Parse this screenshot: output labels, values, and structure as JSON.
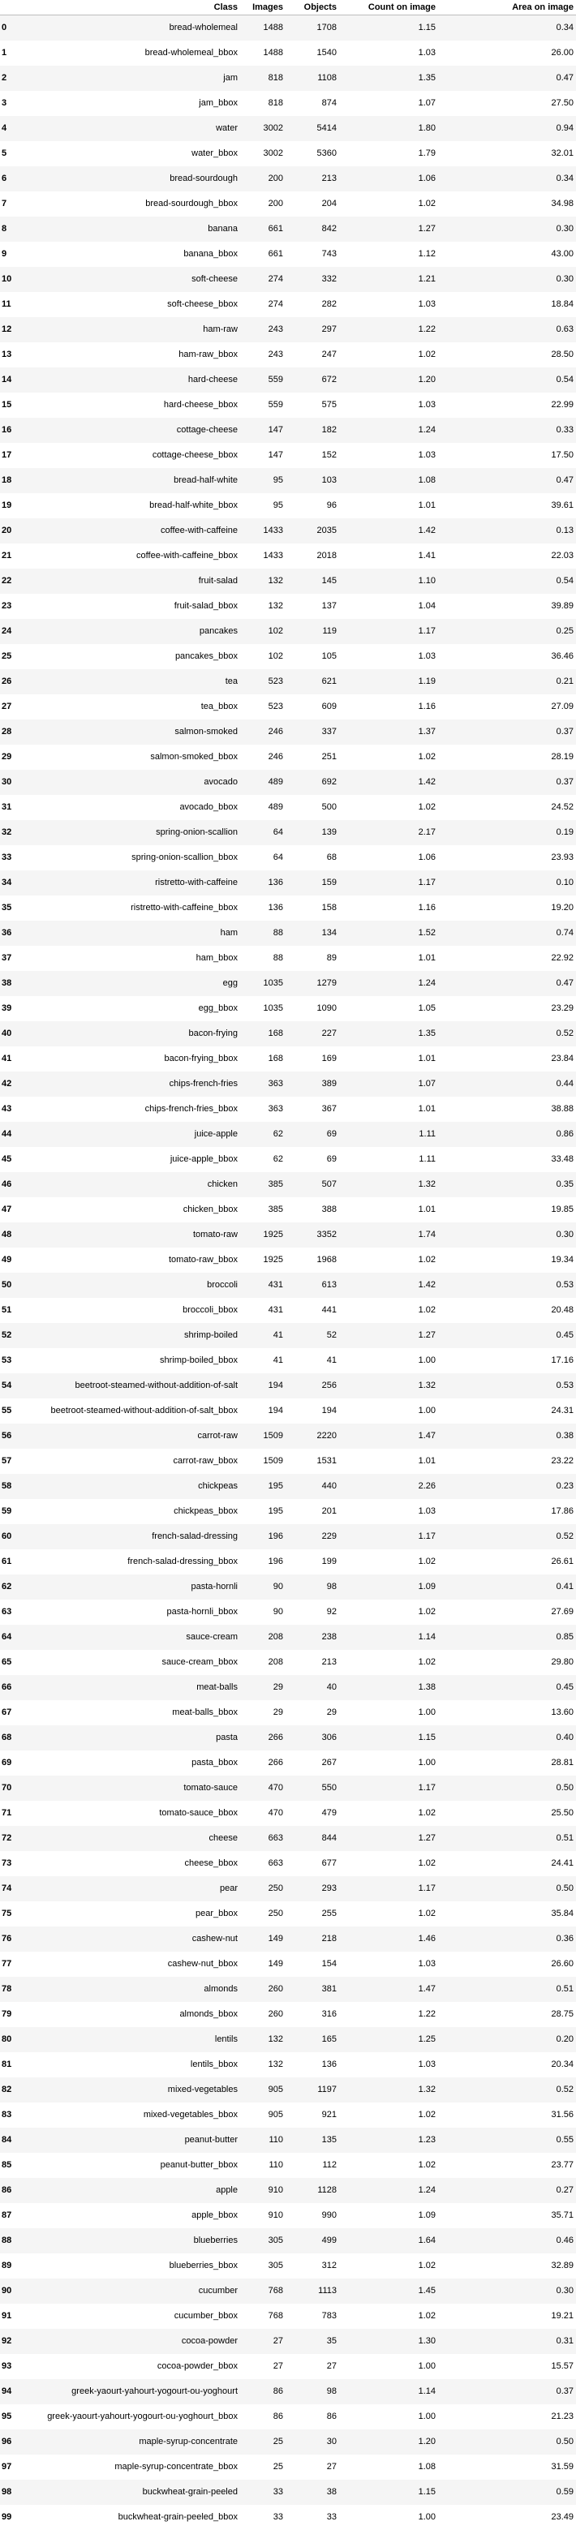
{
  "columns": [
    "",
    "Class",
    "Images",
    "Objects",
    "Count on image",
    "Area on image"
  ],
  "rows": [
    [
      "0",
      "bread-wholemeal",
      "1488",
      "1708",
      "1.15",
      "0.34"
    ],
    [
      "1",
      "bread-wholemeal_bbox",
      "1488",
      "1540",
      "1.03",
      "26.00"
    ],
    [
      "2",
      "jam",
      "818",
      "1108",
      "1.35",
      "0.47"
    ],
    [
      "3",
      "jam_bbox",
      "818",
      "874",
      "1.07",
      "27.50"
    ],
    [
      "4",
      "water",
      "3002",
      "5414",
      "1.80",
      "0.94"
    ],
    [
      "5",
      "water_bbox",
      "3002",
      "5360",
      "1.79",
      "32.01"
    ],
    [
      "6",
      "bread-sourdough",
      "200",
      "213",
      "1.06",
      "0.34"
    ],
    [
      "7",
      "bread-sourdough_bbox",
      "200",
      "204",
      "1.02",
      "34.98"
    ],
    [
      "8",
      "banana",
      "661",
      "842",
      "1.27",
      "0.30"
    ],
    [
      "9",
      "banana_bbox",
      "661",
      "743",
      "1.12",
      "43.00"
    ],
    [
      "10",
      "soft-cheese",
      "274",
      "332",
      "1.21",
      "0.30"
    ],
    [
      "11",
      "soft-cheese_bbox",
      "274",
      "282",
      "1.03",
      "18.84"
    ],
    [
      "12",
      "ham-raw",
      "243",
      "297",
      "1.22",
      "0.63"
    ],
    [
      "13",
      "ham-raw_bbox",
      "243",
      "247",
      "1.02",
      "28.50"
    ],
    [
      "14",
      "hard-cheese",
      "559",
      "672",
      "1.20",
      "0.54"
    ],
    [
      "15",
      "hard-cheese_bbox",
      "559",
      "575",
      "1.03",
      "22.99"
    ],
    [
      "16",
      "cottage-cheese",
      "147",
      "182",
      "1.24",
      "0.33"
    ],
    [
      "17",
      "cottage-cheese_bbox",
      "147",
      "152",
      "1.03",
      "17.50"
    ],
    [
      "18",
      "bread-half-white",
      "95",
      "103",
      "1.08",
      "0.47"
    ],
    [
      "19",
      "bread-half-white_bbox",
      "95",
      "96",
      "1.01",
      "39.61"
    ],
    [
      "20",
      "coffee-with-caffeine",
      "1433",
      "2035",
      "1.42",
      "0.13"
    ],
    [
      "21",
      "coffee-with-caffeine_bbox",
      "1433",
      "2018",
      "1.41",
      "22.03"
    ],
    [
      "22",
      "fruit-salad",
      "132",
      "145",
      "1.10",
      "0.54"
    ],
    [
      "23",
      "fruit-salad_bbox",
      "132",
      "137",
      "1.04",
      "39.89"
    ],
    [
      "24",
      "pancakes",
      "102",
      "119",
      "1.17",
      "0.25"
    ],
    [
      "25",
      "pancakes_bbox",
      "102",
      "105",
      "1.03",
      "36.46"
    ],
    [
      "26",
      "tea",
      "523",
      "621",
      "1.19",
      "0.21"
    ],
    [
      "27",
      "tea_bbox",
      "523",
      "609",
      "1.16",
      "27.09"
    ],
    [
      "28",
      "salmon-smoked",
      "246",
      "337",
      "1.37",
      "0.37"
    ],
    [
      "29",
      "salmon-smoked_bbox",
      "246",
      "251",
      "1.02",
      "28.19"
    ],
    [
      "30",
      "avocado",
      "489",
      "692",
      "1.42",
      "0.37"
    ],
    [
      "31",
      "avocado_bbox",
      "489",
      "500",
      "1.02",
      "24.52"
    ],
    [
      "32",
      "spring-onion-scallion",
      "64",
      "139",
      "2.17",
      "0.19"
    ],
    [
      "33",
      "spring-onion-scallion_bbox",
      "64",
      "68",
      "1.06",
      "23.93"
    ],
    [
      "34",
      "ristretto-with-caffeine",
      "136",
      "159",
      "1.17",
      "0.10"
    ],
    [
      "35",
      "ristretto-with-caffeine_bbox",
      "136",
      "158",
      "1.16",
      "19.20"
    ],
    [
      "36",
      "ham",
      "88",
      "134",
      "1.52",
      "0.74"
    ],
    [
      "37",
      "ham_bbox",
      "88",
      "89",
      "1.01",
      "22.92"
    ],
    [
      "38",
      "egg",
      "1035",
      "1279",
      "1.24",
      "0.47"
    ],
    [
      "39",
      "egg_bbox",
      "1035",
      "1090",
      "1.05",
      "23.29"
    ],
    [
      "40",
      "bacon-frying",
      "168",
      "227",
      "1.35",
      "0.52"
    ],
    [
      "41",
      "bacon-frying_bbox",
      "168",
      "169",
      "1.01",
      "23.84"
    ],
    [
      "42",
      "chips-french-fries",
      "363",
      "389",
      "1.07",
      "0.44"
    ],
    [
      "43",
      "chips-french-fries_bbox",
      "363",
      "367",
      "1.01",
      "38.88"
    ],
    [
      "44",
      "juice-apple",
      "62",
      "69",
      "1.11",
      "0.86"
    ],
    [
      "45",
      "juice-apple_bbox",
      "62",
      "69",
      "1.11",
      "33.48"
    ],
    [
      "46",
      "chicken",
      "385",
      "507",
      "1.32",
      "0.35"
    ],
    [
      "47",
      "chicken_bbox",
      "385",
      "388",
      "1.01",
      "19.85"
    ],
    [
      "48",
      "tomato-raw",
      "1925",
      "3352",
      "1.74",
      "0.30"
    ],
    [
      "49",
      "tomato-raw_bbox",
      "1925",
      "1968",
      "1.02",
      "19.34"
    ],
    [
      "50",
      "broccoli",
      "431",
      "613",
      "1.42",
      "0.53"
    ],
    [
      "51",
      "broccoli_bbox",
      "431",
      "441",
      "1.02",
      "20.48"
    ],
    [
      "52",
      "shrimp-boiled",
      "41",
      "52",
      "1.27",
      "0.45"
    ],
    [
      "53",
      "shrimp-boiled_bbox",
      "41",
      "41",
      "1.00",
      "17.16"
    ],
    [
      "54",
      "beetroot-steamed-without-addition-of-salt",
      "194",
      "256",
      "1.32",
      "0.53"
    ],
    [
      "55",
      "beetroot-steamed-without-addition-of-salt_bbox",
      "194",
      "194",
      "1.00",
      "24.31"
    ],
    [
      "56",
      "carrot-raw",
      "1509",
      "2220",
      "1.47",
      "0.38"
    ],
    [
      "57",
      "carrot-raw_bbox",
      "1509",
      "1531",
      "1.01",
      "23.22"
    ],
    [
      "58",
      "chickpeas",
      "195",
      "440",
      "2.26",
      "0.23"
    ],
    [
      "59",
      "chickpeas_bbox",
      "195",
      "201",
      "1.03",
      "17.86"
    ],
    [
      "60",
      "french-salad-dressing",
      "196",
      "229",
      "1.17",
      "0.52"
    ],
    [
      "61",
      "french-salad-dressing_bbox",
      "196",
      "199",
      "1.02",
      "26.61"
    ],
    [
      "62",
      "pasta-hornli",
      "90",
      "98",
      "1.09",
      "0.41"
    ],
    [
      "63",
      "pasta-hornli_bbox",
      "90",
      "92",
      "1.02",
      "27.69"
    ],
    [
      "64",
      "sauce-cream",
      "208",
      "238",
      "1.14",
      "0.85"
    ],
    [
      "65",
      "sauce-cream_bbox",
      "208",
      "213",
      "1.02",
      "29.80"
    ],
    [
      "66",
      "meat-balls",
      "29",
      "40",
      "1.38",
      "0.45"
    ],
    [
      "67",
      "meat-balls_bbox",
      "29",
      "29",
      "1.00",
      "13.60"
    ],
    [
      "68",
      "pasta",
      "266",
      "306",
      "1.15",
      "0.40"
    ],
    [
      "69",
      "pasta_bbox",
      "266",
      "267",
      "1.00",
      "28.81"
    ],
    [
      "70",
      "tomato-sauce",
      "470",
      "550",
      "1.17",
      "0.50"
    ],
    [
      "71",
      "tomato-sauce_bbox",
      "470",
      "479",
      "1.02",
      "25.50"
    ],
    [
      "72",
      "cheese",
      "663",
      "844",
      "1.27",
      "0.51"
    ],
    [
      "73",
      "cheese_bbox",
      "663",
      "677",
      "1.02",
      "24.41"
    ],
    [
      "74",
      "pear",
      "250",
      "293",
      "1.17",
      "0.50"
    ],
    [
      "75",
      "pear_bbox",
      "250",
      "255",
      "1.02",
      "35.84"
    ],
    [
      "76",
      "cashew-nut",
      "149",
      "218",
      "1.46",
      "0.36"
    ],
    [
      "77",
      "cashew-nut_bbox",
      "149",
      "154",
      "1.03",
      "26.60"
    ],
    [
      "78",
      "almonds",
      "260",
      "381",
      "1.47",
      "0.51"
    ],
    [
      "79",
      "almonds_bbox",
      "260",
      "316",
      "1.22",
      "28.75"
    ],
    [
      "80",
      "lentils",
      "132",
      "165",
      "1.25",
      "0.20"
    ],
    [
      "81",
      "lentils_bbox",
      "132",
      "136",
      "1.03",
      "20.34"
    ],
    [
      "82",
      "mixed-vegetables",
      "905",
      "1197",
      "1.32",
      "0.52"
    ],
    [
      "83",
      "mixed-vegetables_bbox",
      "905",
      "921",
      "1.02",
      "31.56"
    ],
    [
      "84",
      "peanut-butter",
      "110",
      "135",
      "1.23",
      "0.55"
    ],
    [
      "85",
      "peanut-butter_bbox",
      "110",
      "112",
      "1.02",
      "23.77"
    ],
    [
      "86",
      "apple",
      "910",
      "1128",
      "1.24",
      "0.27"
    ],
    [
      "87",
      "apple_bbox",
      "910",
      "990",
      "1.09",
      "35.71"
    ],
    [
      "88",
      "blueberries",
      "305",
      "499",
      "1.64",
      "0.46"
    ],
    [
      "89",
      "blueberries_bbox",
      "305",
      "312",
      "1.02",
      "32.89"
    ],
    [
      "90",
      "cucumber",
      "768",
      "1113",
      "1.45",
      "0.30"
    ],
    [
      "91",
      "cucumber_bbox",
      "768",
      "783",
      "1.02",
      "19.21"
    ],
    [
      "92",
      "cocoa-powder",
      "27",
      "35",
      "1.30",
      "0.31"
    ],
    [
      "93",
      "cocoa-powder_bbox",
      "27",
      "27",
      "1.00",
      "15.57"
    ],
    [
      "94",
      "greek-yaourt-yahourt-yogourt-ou-yoghourt",
      "86",
      "98",
      "1.14",
      "0.37"
    ],
    [
      "95",
      "greek-yaourt-yahourt-yogourt-ou-yoghourt_bbox",
      "86",
      "86",
      "1.00",
      "21.23"
    ],
    [
      "96",
      "maple-syrup-concentrate",
      "25",
      "30",
      "1.20",
      "0.50"
    ],
    [
      "97",
      "maple-syrup-concentrate_bbox",
      "25",
      "27",
      "1.08",
      "31.59"
    ],
    [
      "98",
      "buckwheat-grain-peeled",
      "33",
      "38",
      "1.15",
      "0.59"
    ],
    [
      "99",
      "buckwheat-grain-peeled_bbox",
      "33",
      "33",
      "1.00",
      "23.49"
    ]
  ]
}
